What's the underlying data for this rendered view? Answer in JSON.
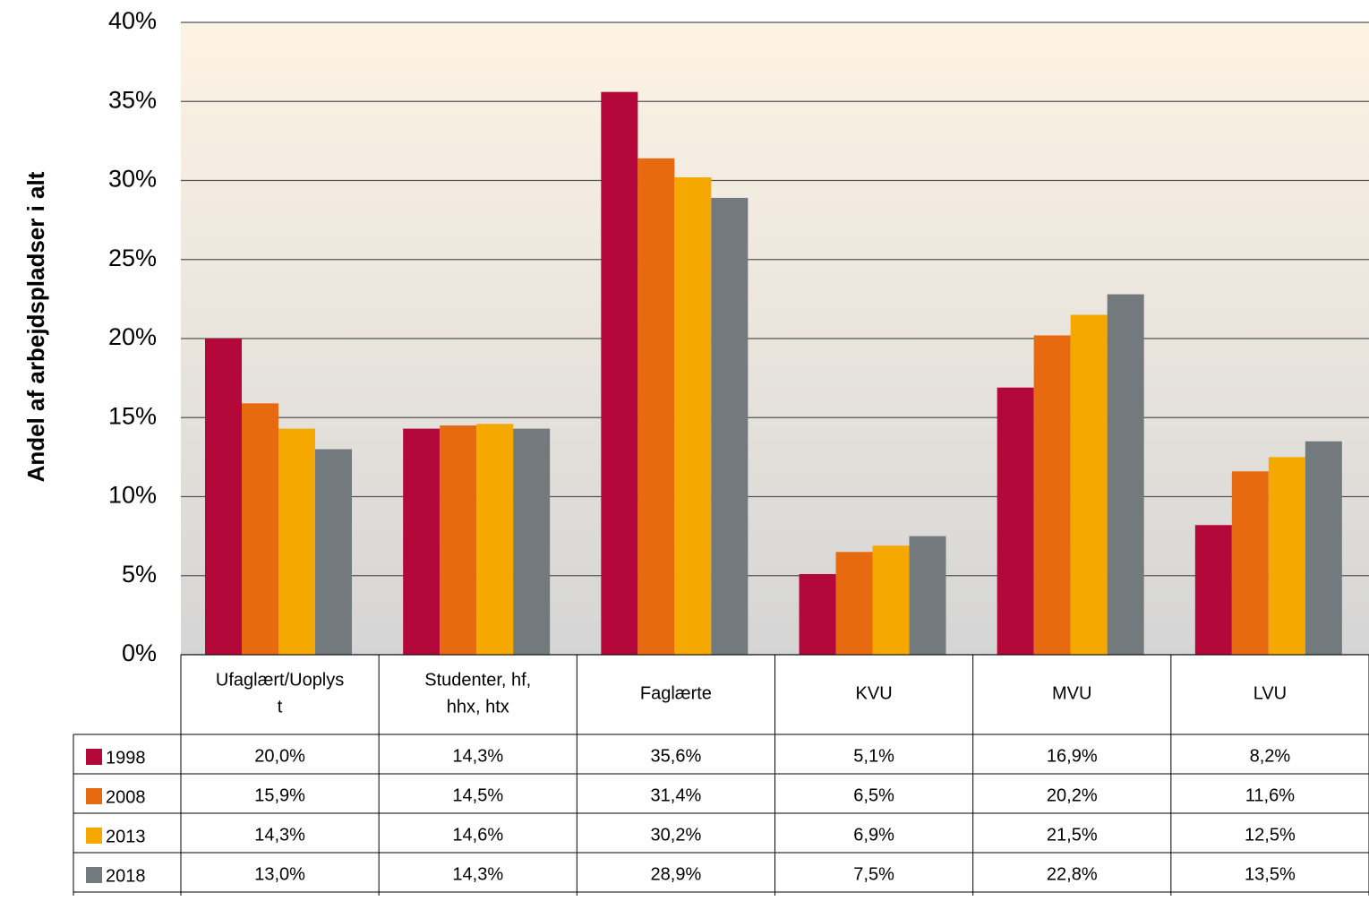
{
  "chart_data": {
    "type": "bar",
    "y_label": "Andel af arbejdspladser i alt",
    "categories": [
      "Ufaglært/Uoplys\nt",
      "Studenter, hf,\nhhx, htx",
      "Faglærte",
      "KVU",
      "MVU",
      "LVU"
    ],
    "series": [
      {
        "name": "1998",
        "color": "#b5083a",
        "values": [
          20.0,
          14.3,
          35.6,
          5.1,
          16.9,
          8.2
        ],
        "value_labels": [
          "20,0%",
          "14,3%",
          "35,6%",
          "5,1%",
          "16,9%",
          "8,2%"
        ]
      },
      {
        "name": "2008",
        "color": "#e86a10",
        "values": [
          15.9,
          14.5,
          31.4,
          6.5,
          20.2,
          11.6
        ],
        "value_labels": [
          "15,9%",
          "14,5%",
          "31,4%",
          "6,5%",
          "20,2%",
          "11,6%"
        ]
      },
      {
        "name": "2013",
        "color": "#f5a800",
        "values": [
          14.3,
          14.6,
          30.2,
          6.9,
          21.5,
          12.5
        ],
        "value_labels": [
          "14,3%",
          "14,6%",
          "30,2%",
          "6,9%",
          "21,5%",
          "12,5%"
        ]
      },
      {
        "name": "2018",
        "color": "#737a7d",
        "values": [
          13.0,
          14.3,
          28.9,
          7.5,
          22.8,
          13.5
        ],
        "value_labels": [
          "13,0%",
          "14,3%",
          "28,9%",
          "7,5%",
          "22,8%",
          "13,5%"
        ]
      }
    ],
    "ylim": [
      0,
      40
    ],
    "yticks": [
      {
        "value": 0,
        "label": "0%"
      },
      {
        "value": 5,
        "label": "5%"
      },
      {
        "value": 10,
        "label": "10%"
      },
      {
        "value": 15,
        "label": "15%"
      },
      {
        "value": 20,
        "label": "20%"
      },
      {
        "value": 25,
        "label": "25%"
      },
      {
        "value": 30,
        "label": "30%"
      },
      {
        "value": 35,
        "label": "35%"
      },
      {
        "value": 40,
        "label": "40%"
      }
    ],
    "grid": true
  }
}
